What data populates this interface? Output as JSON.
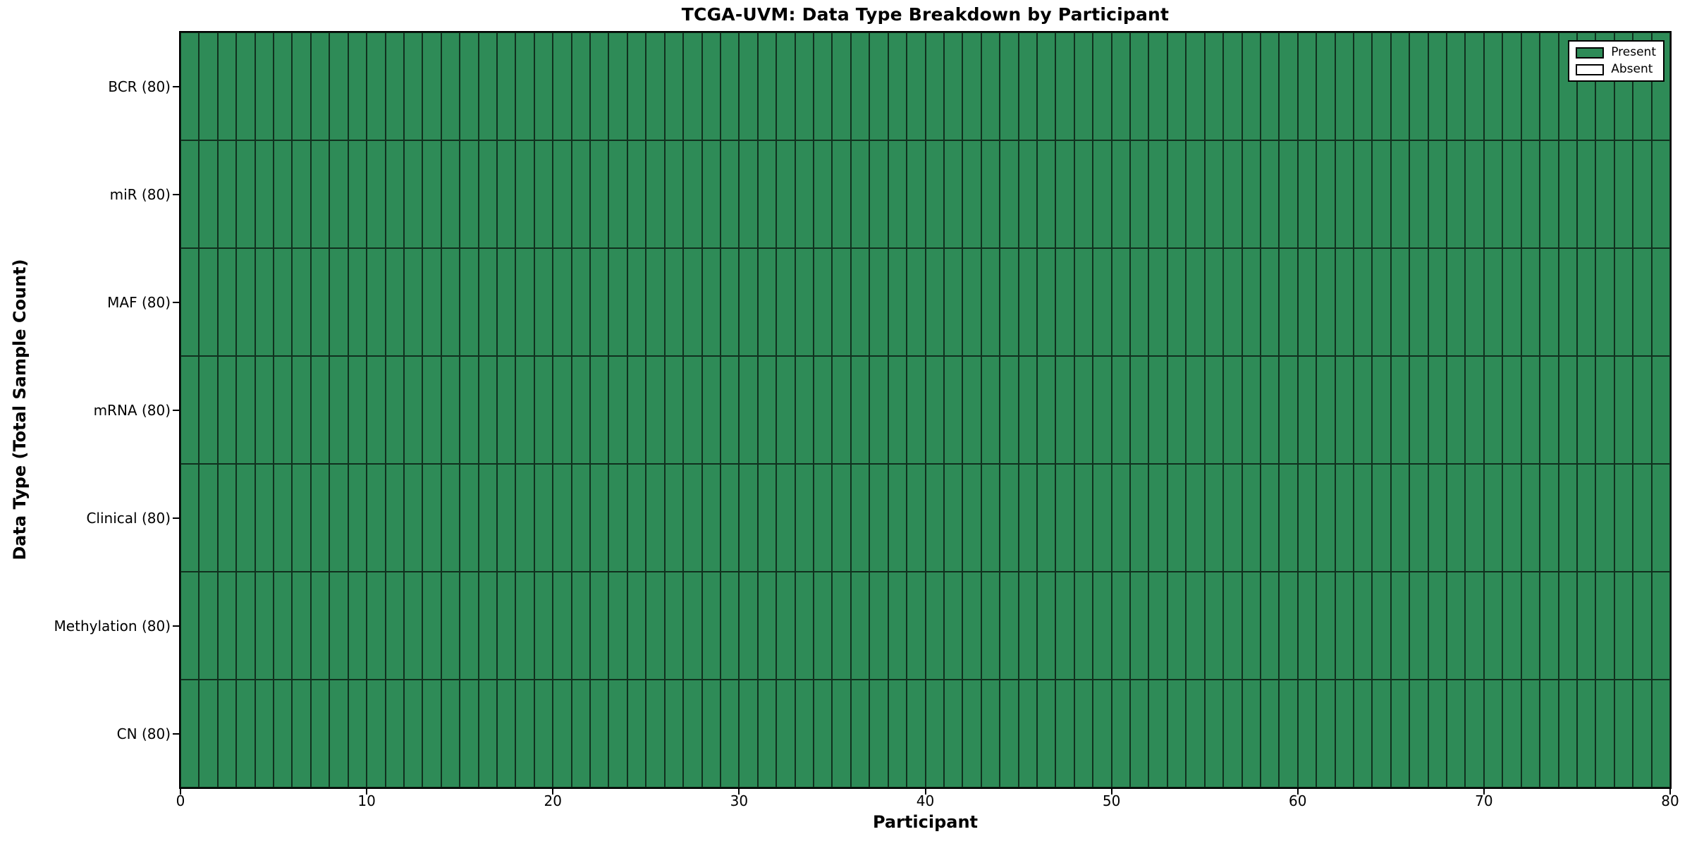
{
  "chart_data": {
    "type": "heatmap",
    "title": "TCGA-UVM: Data Type Breakdown by Participant",
    "xlabel": "Participant",
    "ylabel": "Data Type (Total Sample Count)",
    "x_range": [
      0,
      80
    ],
    "x_ticks": [
      0,
      10,
      20,
      30,
      40,
      50,
      60,
      70,
      80
    ],
    "participants": 80,
    "rows": [
      {
        "label": "BCR (80)",
        "data_type": "BCR",
        "total_samples": 80,
        "present_count": 80,
        "absent_count": 0
      },
      {
        "label": "miR (80)",
        "data_type": "miR",
        "total_samples": 80,
        "present_count": 80,
        "absent_count": 0
      },
      {
        "label": "MAF (80)",
        "data_type": "MAF",
        "total_samples": 80,
        "present_count": 80,
        "absent_count": 0
      },
      {
        "label": "mRNA (80)",
        "data_type": "mRNA",
        "total_samples": 80,
        "present_count": 80,
        "absent_count": 0
      },
      {
        "label": "Clinical (80)",
        "data_type": "Clinical",
        "total_samples": 80,
        "present_count": 80,
        "absent_count": 0
      },
      {
        "label": "Methylation (80)",
        "data_type": "Methylation",
        "total_samples": 80,
        "present_count": 80,
        "absent_count": 0
      },
      {
        "label": "CN (80)",
        "data_type": "CN",
        "total_samples": 80,
        "present_count": 80,
        "absent_count": 0
      }
    ],
    "cell_states": "all cells present for every participant in every row",
    "legend": {
      "position": "upper-right",
      "entries": [
        {
          "label": "Present",
          "color": "#2e8b57"
        },
        {
          "label": "Absent",
          "color": "#ffffff"
        }
      ]
    },
    "colors": {
      "present": "#2e8b57",
      "absent": "#ffffff",
      "cell_edge": "#000000",
      "axis": "#000000",
      "background": "#ffffff"
    },
    "grid": "cell-borders"
  }
}
